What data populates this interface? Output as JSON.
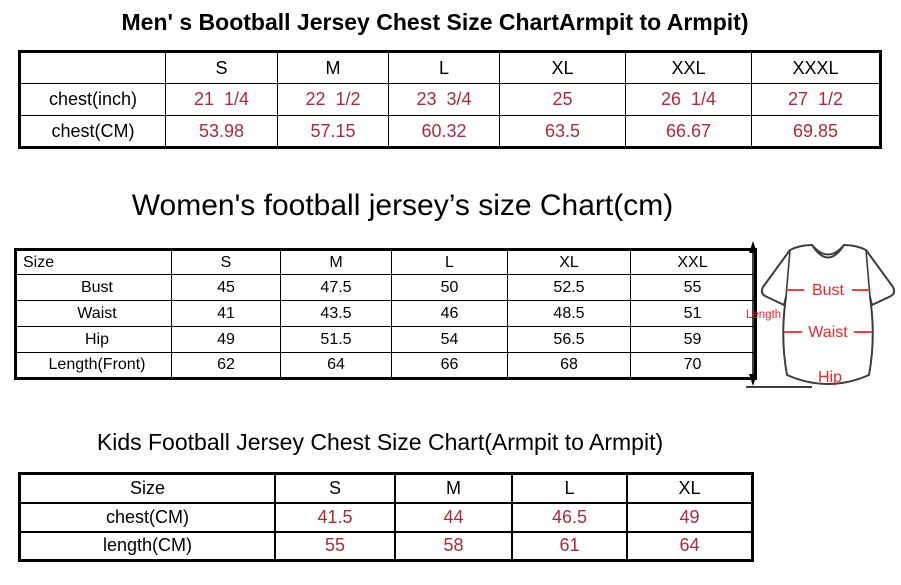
{
  "colors": {
    "value_red": "#A92B3C",
    "diagram_red": "#E8262D",
    "shirt_outline": "#3D3D3D",
    "border": "#000000",
    "text": "#000000",
    "background": "#FFFFFF"
  },
  "chart_data": [
    {
      "type": "table",
      "title": "Men' s Bootball Jersey Chest Size ChartArmpit to Armpit)",
      "columns": [
        "",
        "S",
        "M",
        "L",
        "XL",
        "XXL",
        "XXXL"
      ],
      "rows": [
        [
          "chest(inch)",
          "21  1/4",
          "22  1/2",
          "23  3/4",
          "25",
          "26  1/4",
          "27  1/2"
        ],
        [
          "chest(CM)",
          "53.98",
          "57.15",
          "60.32",
          "63.5",
          "66.67",
          "69.85"
        ]
      ]
    },
    {
      "type": "table",
      "title": "Women's football jersey’s size Chart(cm)",
      "columns": [
        "Size",
        "S",
        "M",
        "L",
        "XL",
        "XXL"
      ],
      "rows": [
        [
          "Bust",
          "45",
          "47.5",
          "50",
          "52.5",
          "55"
        ],
        [
          "Waist",
          "41",
          "43.5",
          "46",
          "48.5",
          "51"
        ],
        [
          "Hip",
          "49",
          "51.5",
          "54",
          "56.5",
          "59"
        ],
        [
          "Length(Front)",
          "62",
          "64",
          "66",
          "68",
          "70"
        ]
      ]
    },
    {
      "type": "table",
      "title": "Kids Football Jersey Chest Size Chart(Armpit to Armpit)",
      "columns": [
        "Size",
        "S",
        "M",
        "L",
        "XL"
      ],
      "rows": [
        [
          "chest(CM)",
          "41.5",
          "44",
          "46.5",
          "49"
        ],
        [
          "length(CM)",
          "55",
          "58",
          "61",
          "64"
        ]
      ]
    }
  ],
  "diagram": {
    "length_label": "Length",
    "bust_label": "Bust",
    "waist_label": "Waist",
    "hip_label": "Hip"
  }
}
